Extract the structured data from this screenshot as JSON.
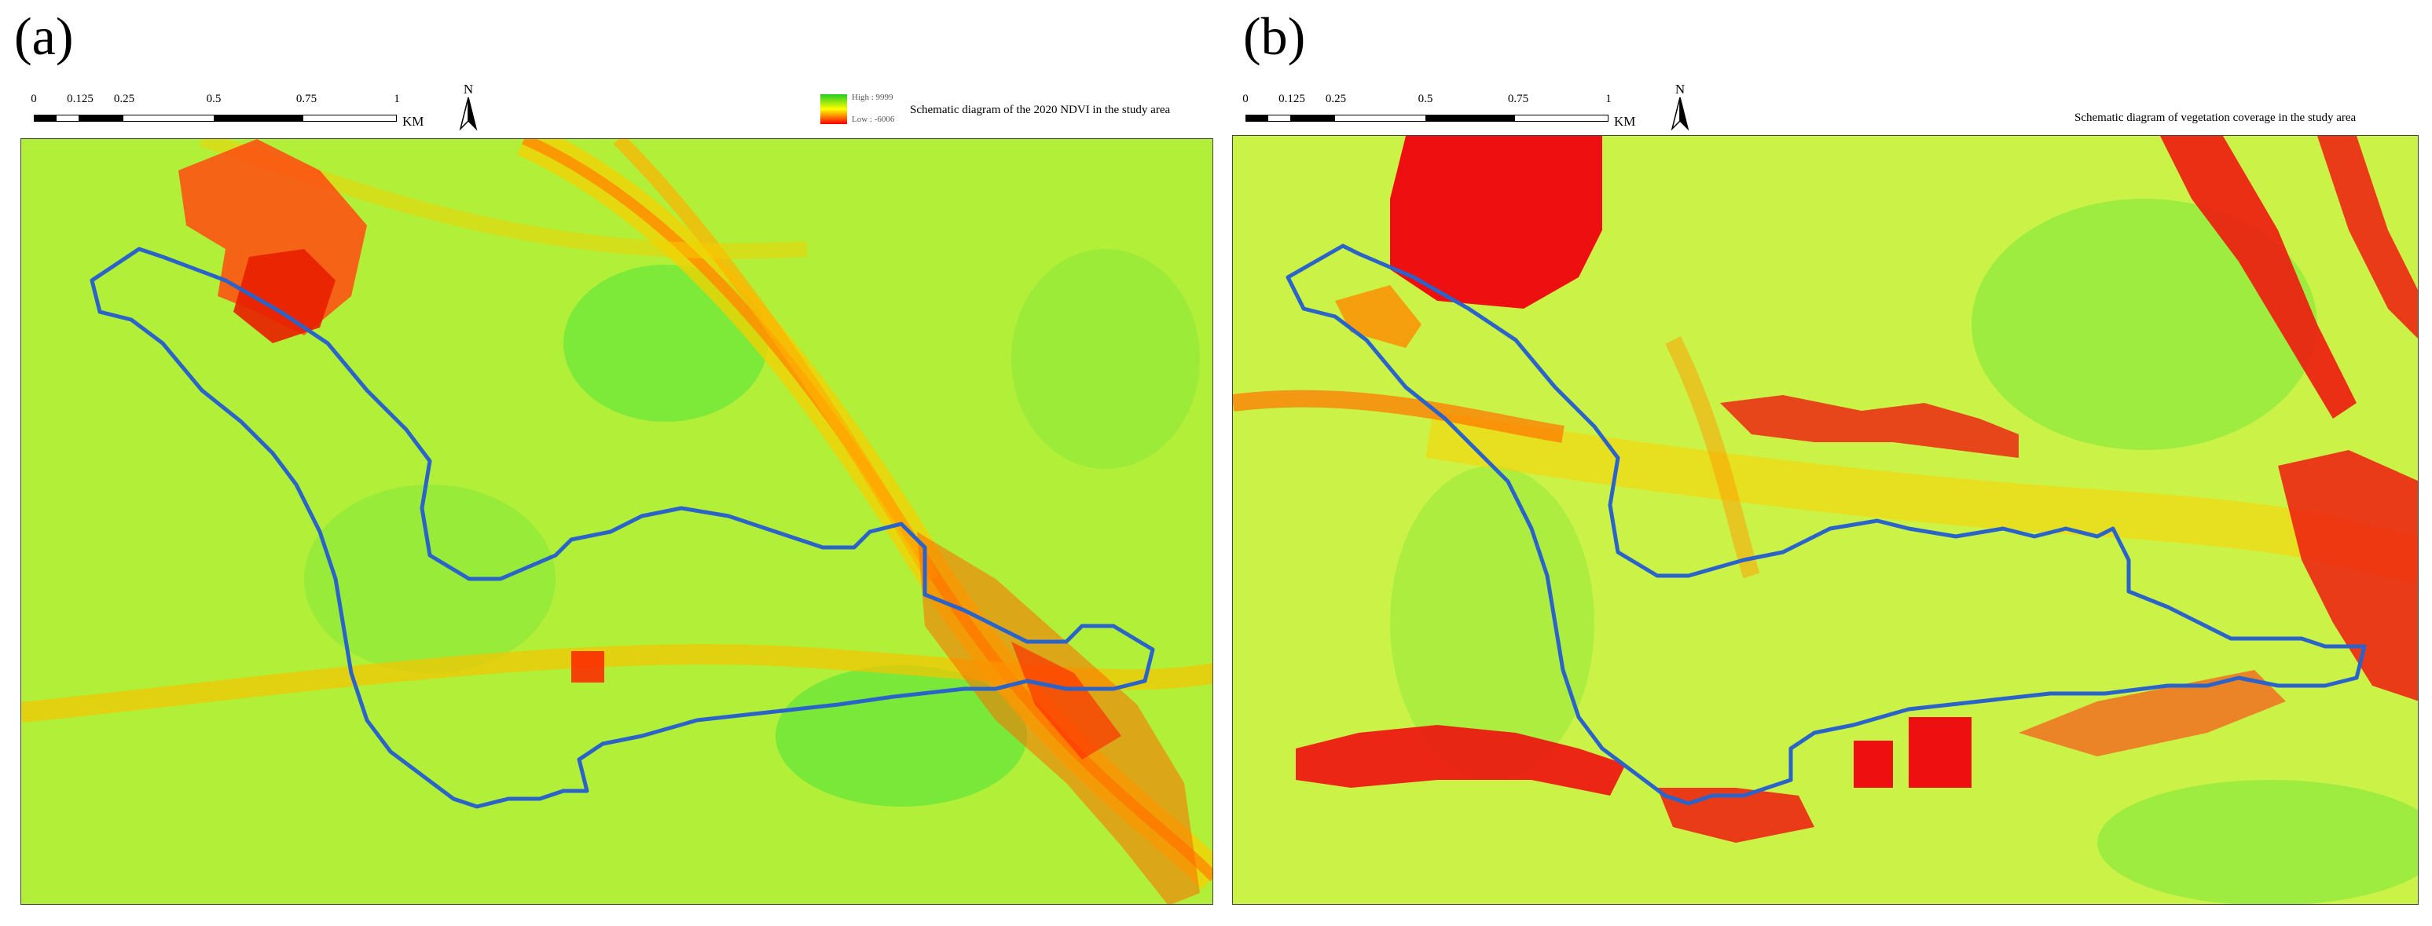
{
  "panels": [
    {
      "label": "(a)",
      "scale_ticks": [
        "0",
        "0.125",
        "0.25",
        "0.5",
        "0.75",
        "1"
      ],
      "scale_unit": "KM",
      "north_label": "N",
      "legend": {
        "high": "High : 9999",
        "low": "Low : -6006"
      },
      "title": "Schematic diagram of the 2020 NDVI in the study area"
    },
    {
      "label": "(b)",
      "scale_ticks": [
        "0",
        "0.125",
        "0.25",
        "0.5",
        "0.75",
        "1"
      ],
      "scale_unit": "KM",
      "north_label": "N",
      "title": "Schematic diagram of vegetation coverage in the study area"
    }
  ],
  "colors": {
    "boundary": "#2a63c9",
    "high": "#33dd22",
    "mid": "#ffff00",
    "low": "#ff0000"
  }
}
